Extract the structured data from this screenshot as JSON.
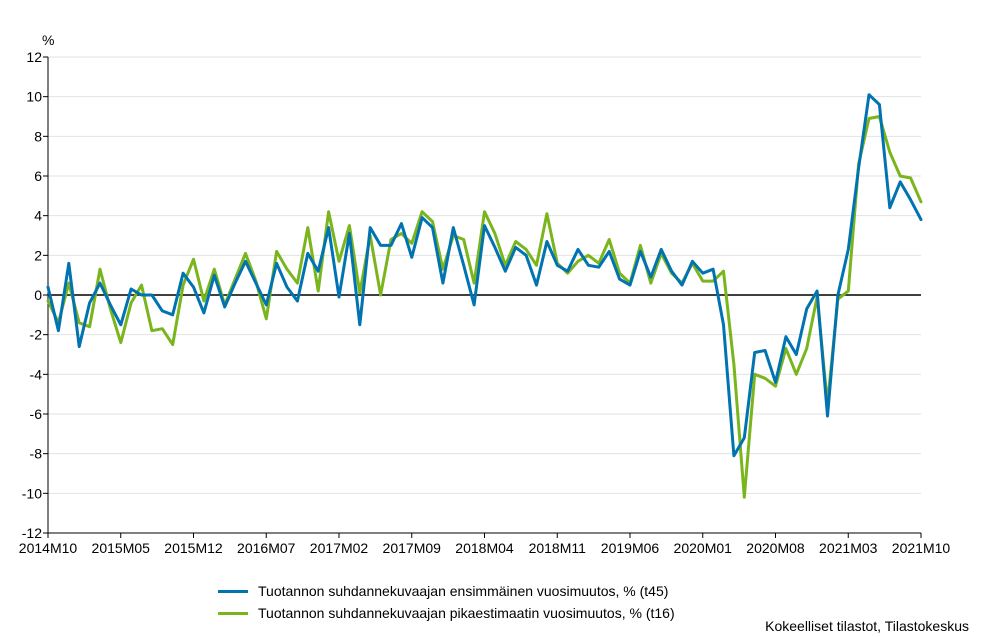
{
  "chart_data": {
    "type": "line",
    "y_unit_label": "%",
    "ylim": [
      -12,
      12
    ],
    "yticks": [
      -12,
      -10,
      -8,
      -6,
      -4,
      -2,
      0,
      2,
      4,
      6,
      8,
      10,
      12
    ],
    "grid": true,
    "legend_position": "bottom",
    "x_tick_labels": [
      "2014M10",
      "2015M05",
      "2015M12",
      "2016M07",
      "2017M02",
      "2017M09",
      "2018M04",
      "2018M11",
      "2019M06",
      "2020M01",
      "2020M08",
      "2021M03",
      "2021M10"
    ],
    "x_start": "2014M10",
    "x_end": "2021M10",
    "series": [
      {
        "name": "Tuotannon suhdannekuvaajan ensimmäinen vuosimuutos, % (t45)",
        "color": "#0073b0",
        "values": [
          0.4,
          -1.8,
          1.6,
          -2.6,
          -0.4,
          0.6,
          -0.5,
          -1.5,
          0.3,
          0.0,
          0.0,
          -0.8,
          -1.0,
          1.1,
          0.4,
          -0.9,
          1.0,
          -0.6,
          0.6,
          1.7,
          0.6,
          -0.5,
          1.6,
          0.4,
          -0.3,
          2.1,
          1.2,
          3.4,
          -0.1,
          3.1,
          -1.5,
          3.4,
          2.5,
          2.5,
          3.6,
          1.9,
          3.9,
          3.4,
          0.6,
          3.4,
          1.5,
          -0.5,
          3.5,
          2.4,
          1.2,
          2.4,
          2.0,
          0.5,
          2.7,
          1.5,
          1.2,
          2.3,
          1.5,
          1.4,
          2.2,
          0.8,
          0.5,
          2.2,
          0.9,
          2.3,
          1.2,
          0.5,
          1.7,
          1.1,
          1.3,
          -1.5,
          -8.1,
          -7.2,
          -2.9,
          -2.8,
          -4.4,
          -2.1,
          -3.0,
          -0.7,
          0.2,
          -6.1,
          0.0,
          2.3,
          6.4,
          10.1,
          9.6,
          4.4,
          5.7,
          4.8,
          3.8
        ]
      },
      {
        "name": "Tuotannon suhdannekuvaajan pikaestimaatin vuosimuutos, % (t16)",
        "color": "#7ab51d",
        "values": [
          -0.3,
          -1.4,
          0.6,
          -1.4,
          -1.6,
          1.3,
          -0.7,
          -2.4,
          -0.4,
          0.5,
          -1.8,
          -1.7,
          -2.5,
          0.5,
          1.8,
          -0.3,
          1.3,
          -0.5,
          0.8,
          2.1,
          0.7,
          -1.2,
          2.2,
          1.3,
          0.6,
          3.4,
          0.2,
          4.2,
          1.7,
          3.5,
          0.1,
          3.0,
          0.0,
          2.8,
          3.1,
          2.6,
          4.2,
          3.7,
          1.3,
          3.0,
          2.8,
          0.6,
          4.2,
          3.1,
          1.5,
          2.7,
          2.3,
          1.5,
          4.1,
          1.6,
          1.1,
          1.7,
          2.0,
          1.6,
          2.8,
          1.1,
          0.6,
          2.5,
          0.6,
          2.1,
          1.1,
          0.6,
          1.6,
          0.7,
          0.7,
          1.2,
          -3.5,
          -10.2,
          -4.0,
          -4.2,
          -4.6,
          -2.7,
          -4.0,
          -2.7,
          -0.1,
          -5.5,
          -0.2,
          0.2,
          6.6,
          8.9,
          9.0,
          7.2,
          6.0,
          5.9,
          4.7
        ]
      }
    ]
  },
  "source_text": "Kokeelliset tilastot, Tilastokeskus"
}
